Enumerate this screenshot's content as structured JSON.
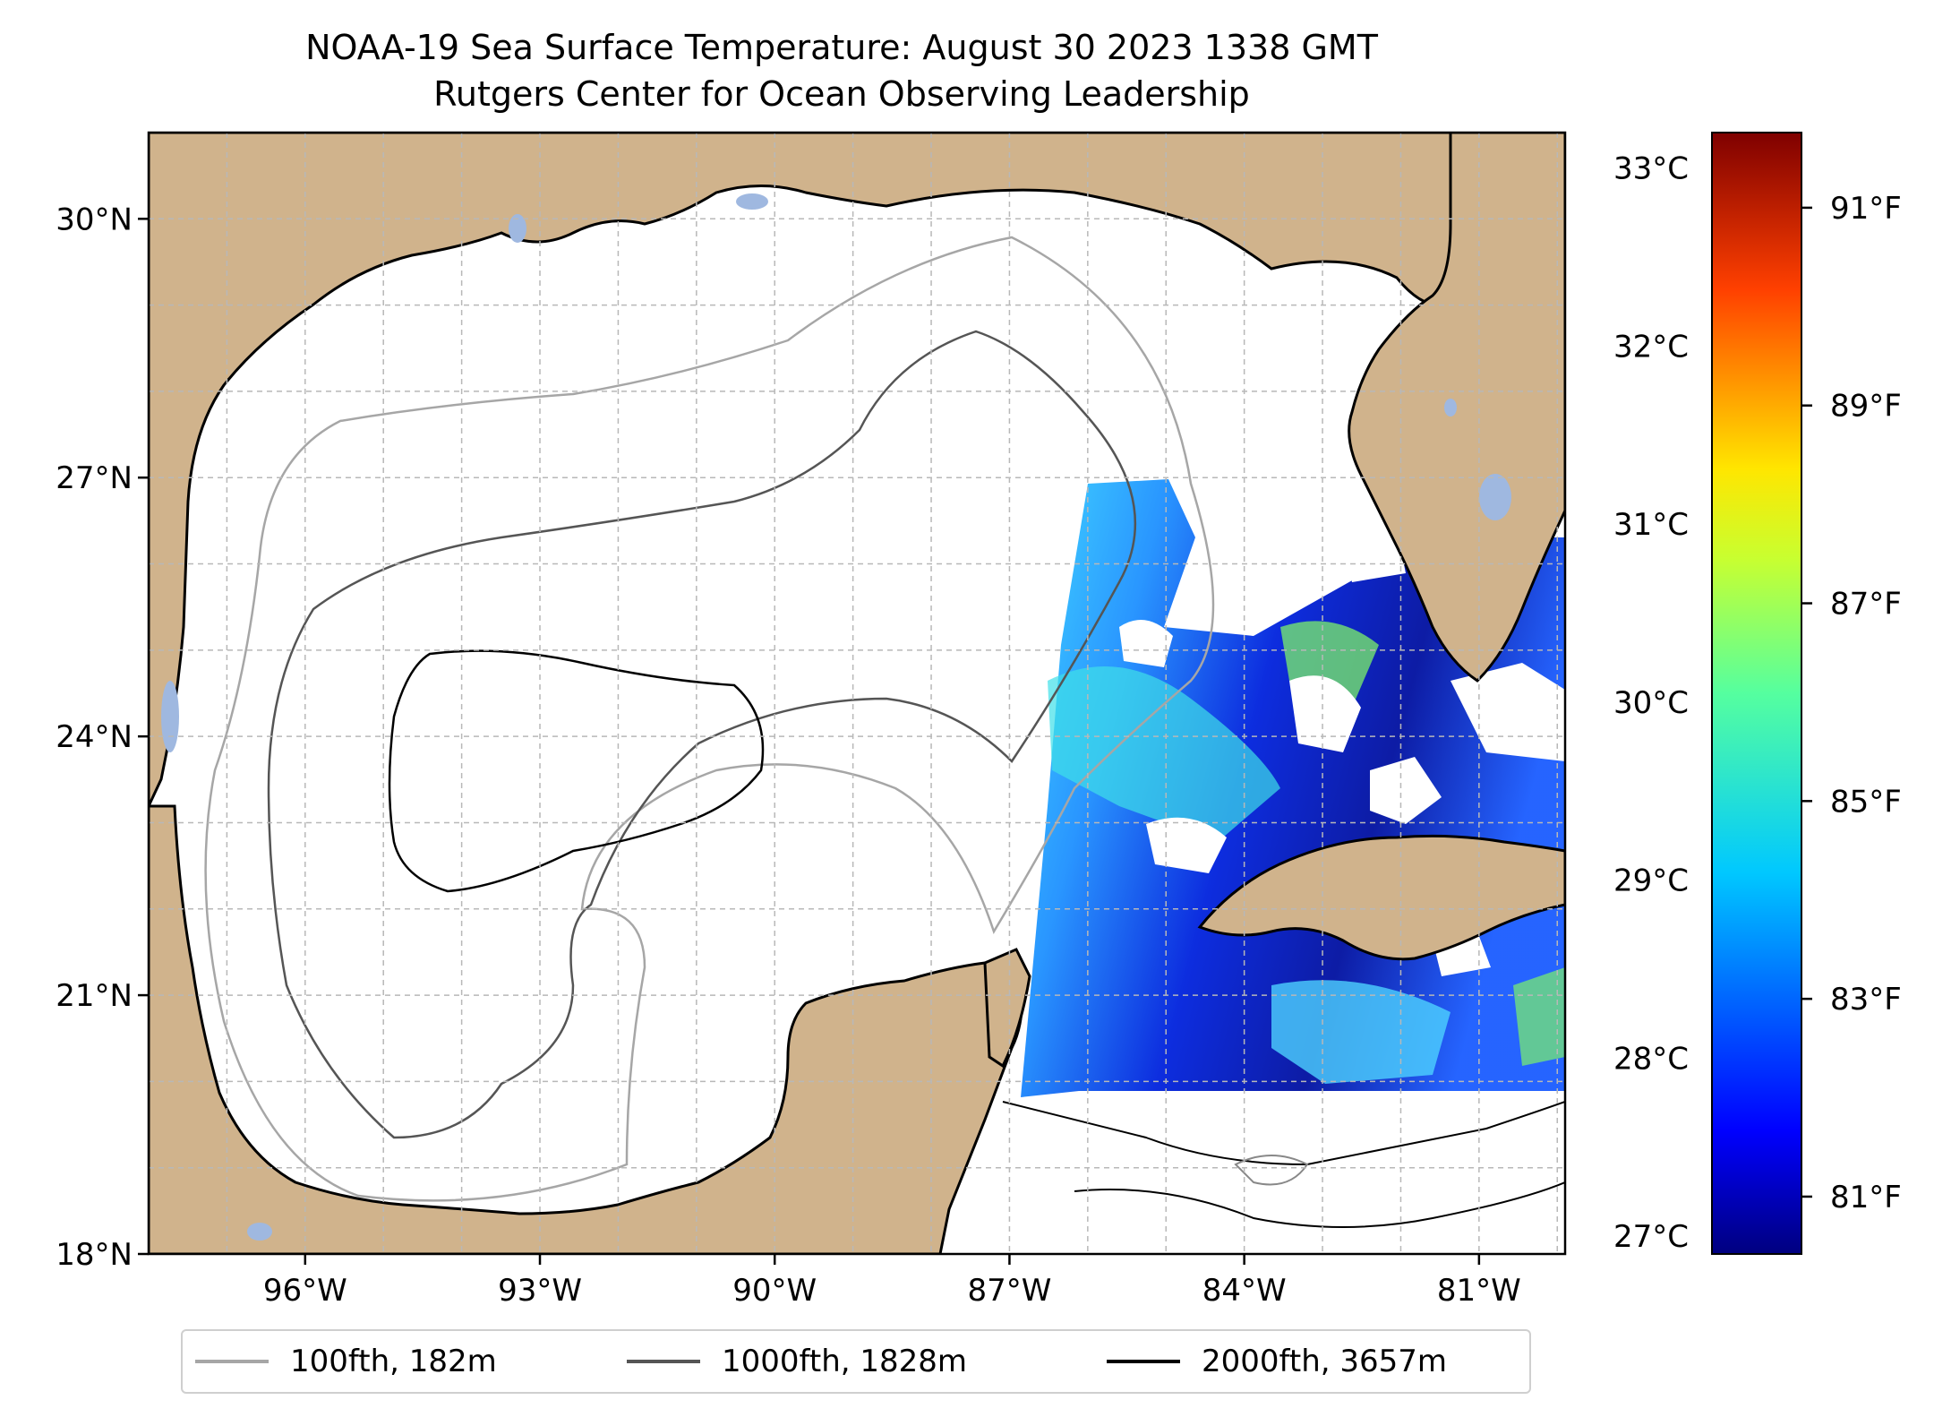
{
  "title": {
    "line1": "NOAA-19 Sea Surface Temperature: August 30 2023 1338 GMT",
    "line2": "Rutgers Center for Ocean Observing Leadership"
  },
  "map": {
    "lon_range": [
      -98,
      -79.9
    ],
    "lat_range": [
      18,
      31
    ],
    "lat_ticks": [
      {
        "value": 18,
        "label": "18°N"
      },
      {
        "value": 21,
        "label": "21°N"
      },
      {
        "value": 24,
        "label": "24°N"
      },
      {
        "value": 27,
        "label": "27°N"
      },
      {
        "value": 30,
        "label": "30°N"
      }
    ],
    "lon_ticks": [
      {
        "value": -96,
        "label": "96°W"
      },
      {
        "value": -93,
        "label": "93°W"
      },
      {
        "value": -90,
        "label": "90°W"
      },
      {
        "value": -87,
        "label": "87°W"
      },
      {
        "value": -84,
        "label": "84°W"
      },
      {
        "value": -81,
        "label": "81°W"
      }
    ],
    "grid": true,
    "land_color": "#d0b38c",
    "water_color": "#ffffff",
    "lake_color": "#9fb8e0"
  },
  "colorbar": {
    "colormap": "jet",
    "celsius_ticks": [
      "33°C",
      "32°C",
      "31°C",
      "30°C",
      "29°C",
      "28°C",
      "27°C"
    ],
    "fahrenheit_ticks": [
      "91°F",
      "89°F",
      "87°F",
      "85°F",
      "83°F",
      "81°F"
    ]
  },
  "legend": {
    "placement": "bottom-center",
    "items": [
      {
        "label": "100fth, 182m",
        "color": "#a6a6a6"
      },
      {
        "label": "1000fth, 1828m",
        "color": "#555555"
      },
      {
        "label": "2000fth, 3657m",
        "color": "#000000"
      }
    ]
  }
}
